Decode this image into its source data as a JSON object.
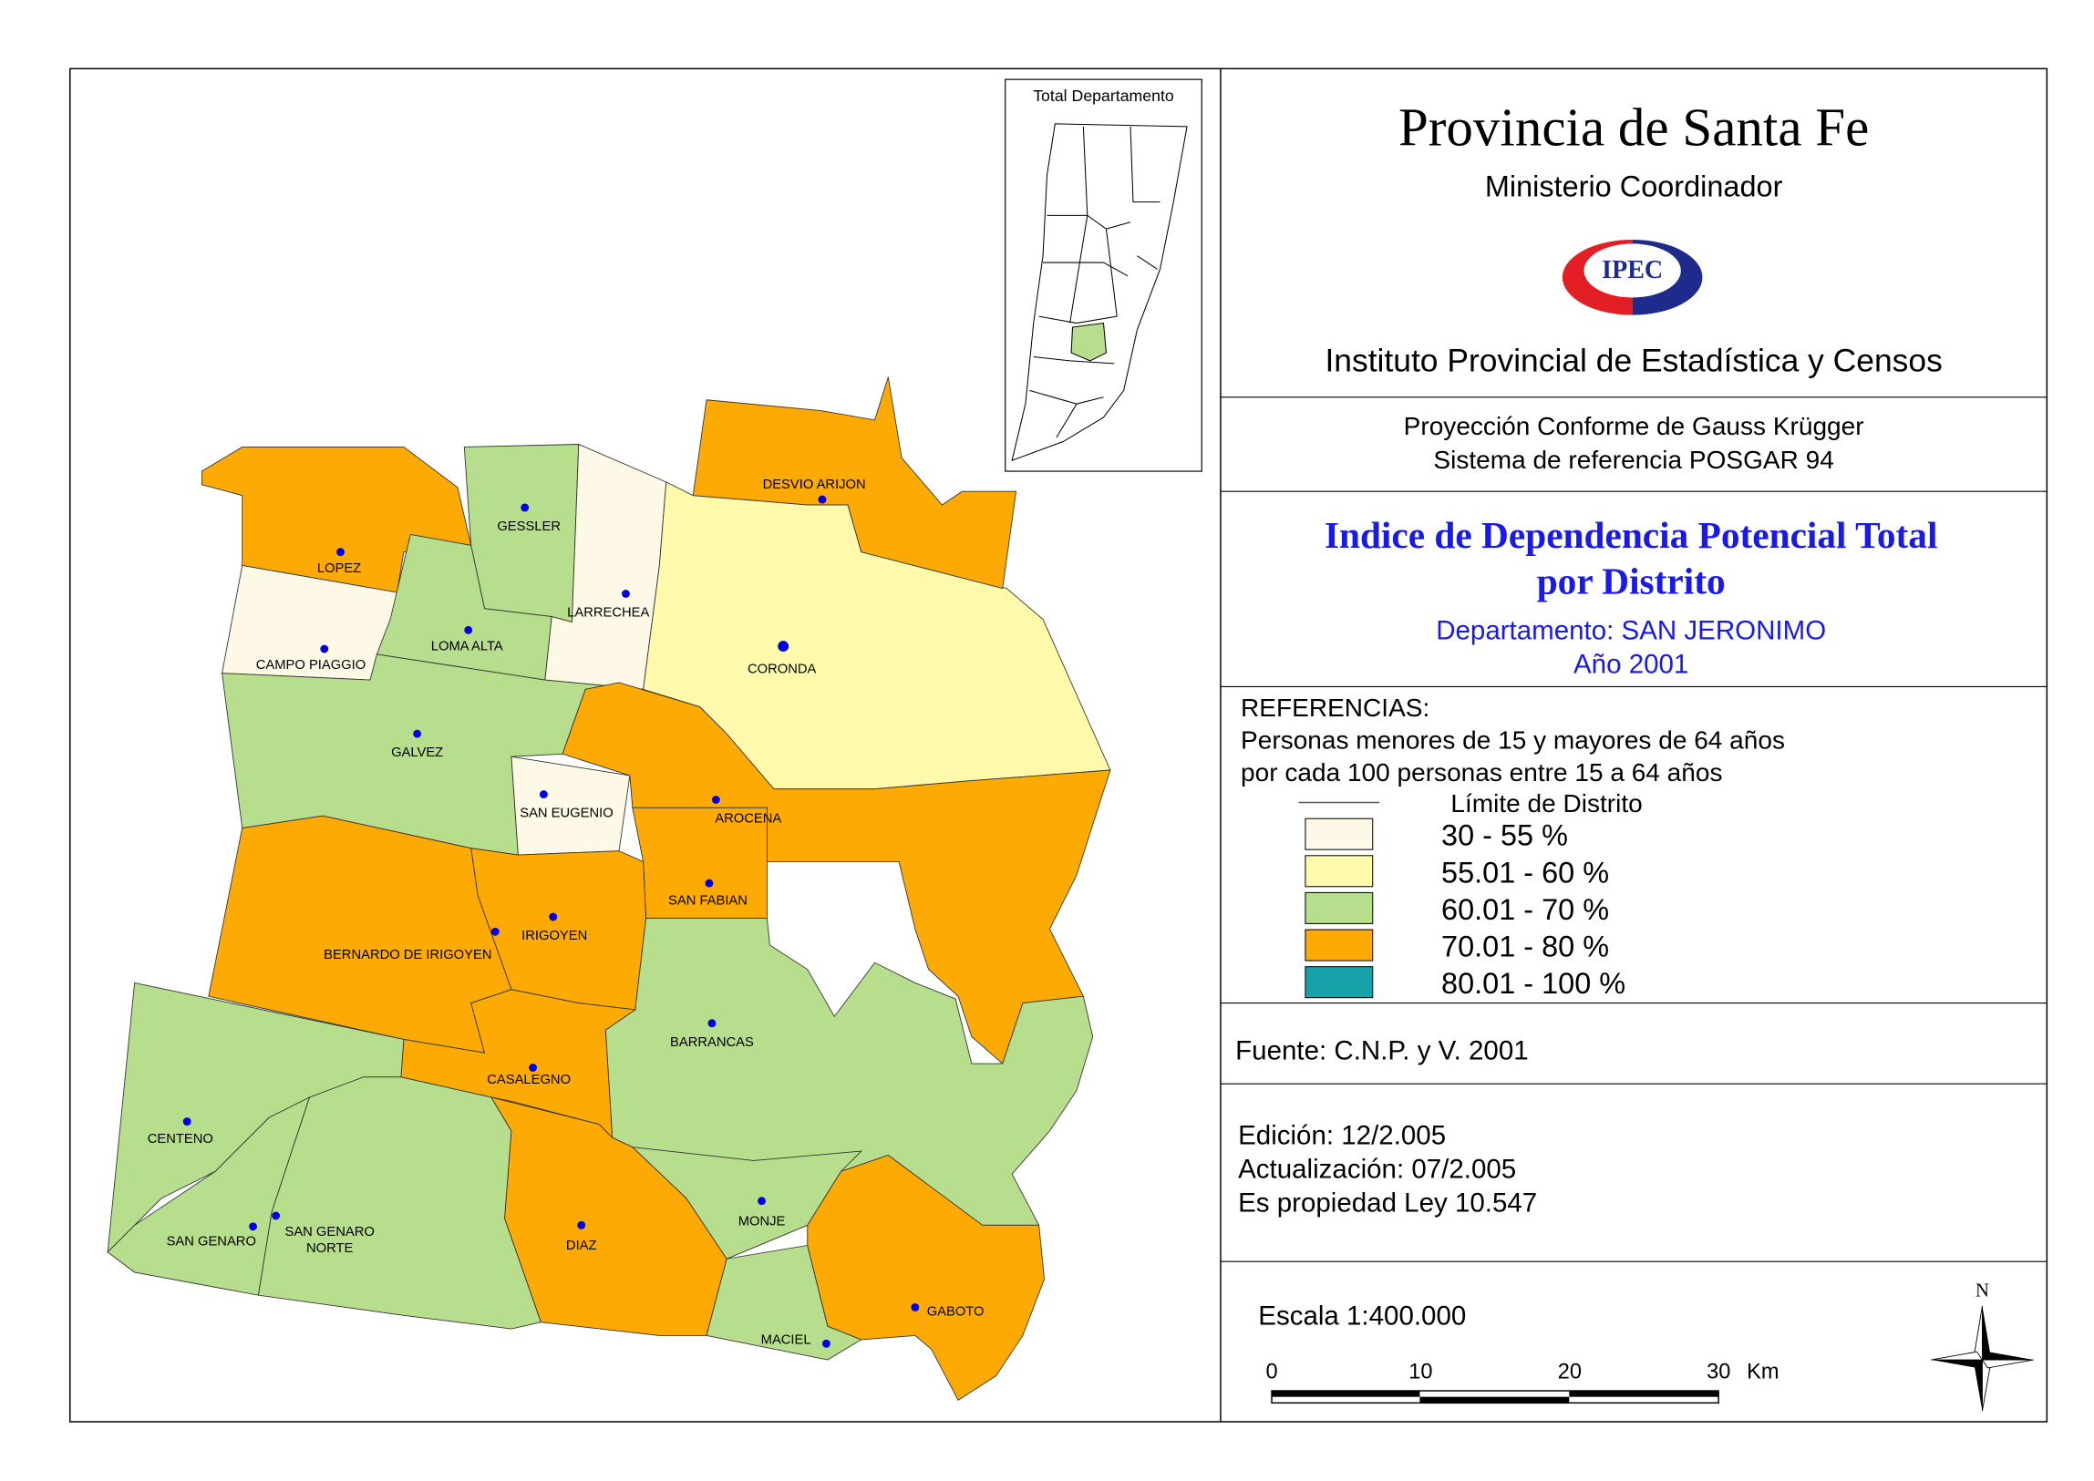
{
  "header": {
    "title": "Provincia de Santa Fe",
    "subtitle": "Ministerio Coordinador",
    "logo": "IPEC",
    "institute": "Instituto Provincial de Estadística y Censos"
  },
  "projection": [
    "Proyección Conforme de Gauss Krügger",
    "Sistema de referencia POSGAR 94"
  ],
  "map_title": {
    "lines": [
      "Indice de Dependencia Potencial Total",
      "por Distrito"
    ],
    "department": "Departamento:  SAN JERONIMO",
    "year": "Año 2001"
  },
  "references": {
    "heading": "REFERENCIAS:",
    "description": [
      "Personas menores de 15 y mayores de 64 años",
      "por cada 100 personas entre 15 a 64 años"
    ],
    "boundary": "Límite de Distrito",
    "items": [
      {
        "label": "30 - 55 %",
        "color": "#fdf9e6"
      },
      {
        "label": "55.01 - 60 %",
        "color": "#fffaab"
      },
      {
        "label": "60.01 - 70 %",
        "color": "#b6de8c"
      },
      {
        "label": "70.01 - 80 %",
        "color": "#fdaa04"
      },
      {
        "label": "80.01 - 100 %",
        "color": "#17a1a8"
      }
    ]
  },
  "source": "Fuente:  C.N.P. y V. 2001",
  "edition": [
    "Edición:  12/2.005",
    "Actualización:  07/2.005",
    "Es propiedad Ley 10.547"
  ],
  "scale": {
    "label": "Escala 1:400.000",
    "ticks": [
      "0",
      "10",
      "20",
      "30"
    ],
    "unit": "Km"
  },
  "north": "N",
  "inset": {
    "title": "Total Departamento"
  },
  "districts": [
    {
      "name": [
        "LOPEZ"
      ],
      "color": "#fdaa04"
    },
    {
      "name": [
        "CAMPO PIAGGIO"
      ],
      "color": "#fdf9e6"
    },
    {
      "name": [
        "GESSLER"
      ],
      "color": "#b6de8c"
    },
    {
      "name": [
        "LOMA ALTA"
      ],
      "color": "#b6de8c"
    },
    {
      "name": [
        "LARRECHEA"
      ],
      "color": "#fdf9e6"
    },
    {
      "name": [
        "CORONDA"
      ],
      "color": "#fffaab"
    },
    {
      "name": [
        "DESVIO ARIJON"
      ],
      "color": "#fdaa04"
    },
    {
      "name": [
        "GALVEZ"
      ],
      "color": "#b6de8c"
    },
    {
      "name": [
        "SAN EUGENIO"
      ],
      "color": "#fdf9e6"
    },
    {
      "name": [
        "AROCENA"
      ],
      "color": "#fdaa04"
    },
    {
      "name": [
        "SAN FABIAN"
      ],
      "color": "#fdaa04"
    },
    {
      "name": [
        "IRIGOYEN"
      ],
      "color": "#fdaa04"
    },
    {
      "name": [
        "BERNARDO DE IRIGOYEN"
      ],
      "color": "#fdaa04"
    },
    {
      "name": [
        "BARRANCAS"
      ],
      "color": "#b6de8c"
    },
    {
      "name": [
        "CASALEGNO"
      ],
      "color": "#fdaa04"
    },
    {
      "name": [
        "CENTENO"
      ],
      "color": "#b6de8c"
    },
    {
      "name": [
        "SAN GENARO"
      ],
      "color": "#b6de8c"
    },
    {
      "name": [
        "SAN GENARO",
        "NORTE"
      ],
      "color": "#b6de8c"
    },
    {
      "name": [
        "DIAZ"
      ],
      "color": "#fdaa04"
    },
    {
      "name": [
        "MONJE"
      ],
      "color": "#b6de8c"
    },
    {
      "name": [
        "MACIEL"
      ],
      "color": "#b6de8c"
    },
    {
      "name": [
        "GABOTO"
      ],
      "color": "#fdaa04"
    }
  ]
}
